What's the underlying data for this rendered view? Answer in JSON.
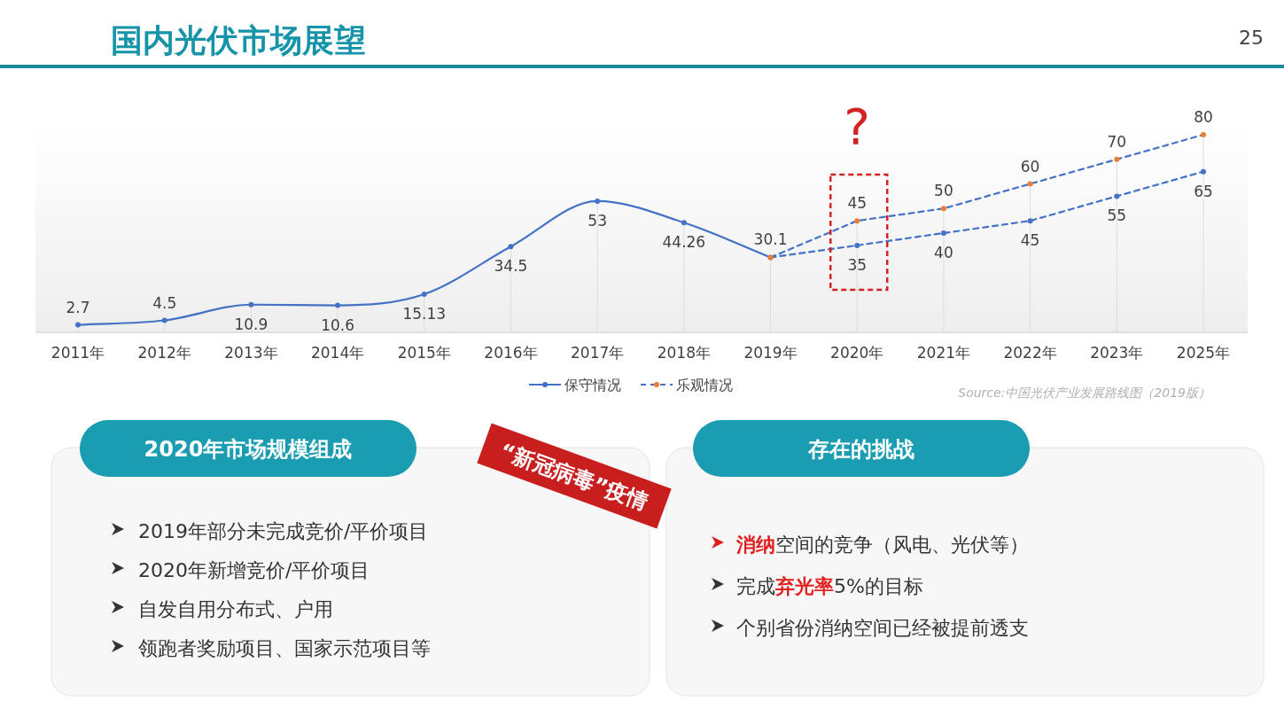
{
  "chart_data": {
    "type": "line",
    "title": "国内光伏市场展望",
    "categories": [
      "2011年",
      "2012年",
      "2013年",
      "2014年",
      "2015年",
      "2016年",
      "2017年",
      "2018年",
      "2019年",
      "2020年",
      "2021年",
      "2022年",
      "2023年",
      "2025年"
    ],
    "series": [
      {
        "name": "保守情况",
        "color": "#4472c4",
        "line_style": "solid",
        "values": [
          2.7,
          4.5,
          10.9,
          10.6,
          15.13,
          34.5,
          53,
          44.26,
          30.1,
          null,
          null,
          null,
          null,
          null
        ],
        "value_labels": [
          "2.7",
          "4.5",
          "10.9",
          "10.6",
          "15.13",
          "34.5",
          "53",
          "44.26",
          "30.1",
          null,
          null,
          null,
          null,
          null
        ]
      },
      {
        "color": "#4472c4",
        "line_style": "dashed",
        "values": [
          null,
          null,
          null,
          null,
          null,
          null,
          null,
          null,
          30.1,
          35,
          40,
          45,
          55,
          65
        ],
        "value_labels": [
          null,
          null,
          null,
          null,
          null,
          null,
          null,
          null,
          null,
          "35",
          "40",
          "45",
          "55",
          "65"
        ]
      },
      {
        "name": "乐观情况",
        "color": "#ed7d31",
        "line_style": "dashed",
        "values": [
          null,
          null,
          null,
          null,
          null,
          null,
          null,
          null,
          30.1,
          45,
          50,
          60,
          70,
          80
        ],
        "value_labels": [
          null,
          null,
          null,
          null,
          null,
          null,
          null,
          null,
          null,
          "45",
          "50",
          "60",
          "70",
          "80"
        ]
      }
    ],
    "marker": "circle",
    "legend": "bottom",
    "grid": "x",
    "annotations": [
      "25",
      "Source:中国光伏产业发展路线图（2019版）",
      "2020年市场规模组成",
      "2019年部分未完成竞价/平价项目",
      "2020年新增竞价/平价项目",
      "自发自用分布式、户用",
      "领跑者奖励项目、国家示范项目等",
      "“新冠病毒”疫情",
      "存在的挑战",
      "**消纳**空间的竞争（风电、光伏等）",
      "完成**弃光率**5%的目标",
      "个别省份消纳空间已经被提前透支",
      "?"
    ]
  }
}
